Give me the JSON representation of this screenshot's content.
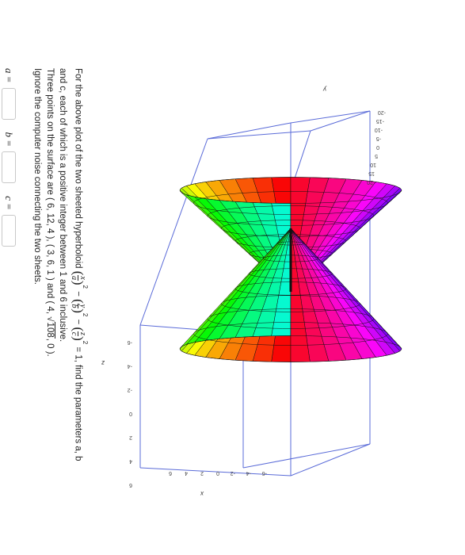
{
  "plot": {
    "axis_names": {
      "x": "x",
      "y": "y",
      "z": "z"
    },
    "x_ticks": [
      "-6",
      "-4",
      "-2",
      "0",
      "2",
      "4",
      "6"
    ],
    "y_ticks": [
      "-20",
      "-15",
      "-10",
      "-5",
      "0",
      "5",
      "10",
      "15",
      "20"
    ],
    "z_ticks": [
      "-6",
      "-4",
      "-2",
      "0",
      "2",
      "4",
      "6"
    ],
    "box_color": "#5a6bd8"
  },
  "question": {
    "line1_prefix": "For the above plot of the two sheeted hyperboloid",
    "eq_x_num": "x",
    "eq_a": "a",
    "eq_y_num": "y",
    "eq_b": "b",
    "eq_z_num": "z",
    "eq_c": "c",
    "eq_power": "2",
    "eq_minus": "−",
    "eq_rhs": "= 1,",
    "line1_suffix": "find the parameters a, b",
    "line2": "and c, each of which is a positive integer between 1 and 6 inclusive.",
    "line3_prefix": "Three points on the surface are ( 6, 12, 4 ), ( 3, 6, 1 ) and ( 4,",
    "line3_radical": "108",
    "line3_suffix": ", 0 ).",
    "line4": "Ignore the computer noise connecting the two sheets."
  },
  "answers": {
    "a_label": "a =",
    "b_label": "b =",
    "c_label": "c =",
    "a_value": "",
    "b_value": "",
    "c_value": ""
  }
}
